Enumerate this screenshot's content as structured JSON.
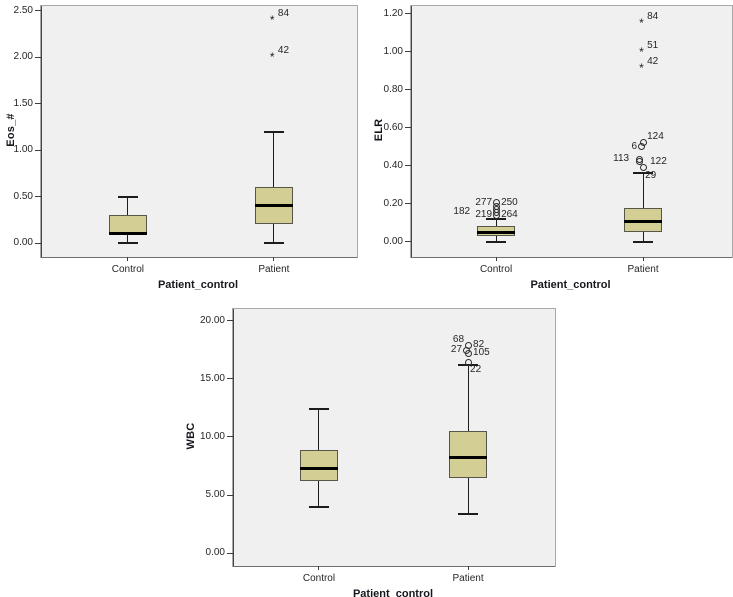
{
  "figure_type": "boxplot-grid",
  "colors": {
    "box_fill": "#d3cf94",
    "box_border": "#56564a",
    "median": "#000000",
    "whisker": "#1c1c1c",
    "plot_background": "#f0f0f0",
    "panel_border": "#a9a9a9",
    "axis_line": "#454545",
    "text": "#262626",
    "title_text": "#17171f"
  },
  "chart_data": [
    {
      "id": "eos",
      "type": "boxplot",
      "ylabel": "Eos_#",
      "xlabel": "Patient_control",
      "categories": [
        "Control",
        "Patient"
      ],
      "ylim": [
        -0.15,
        2.55
      ],
      "yticks": [
        {
          "v": 0.0,
          "label": "0.00"
        },
        {
          "v": 0.5,
          "label": "0.50"
        },
        {
          "v": 1.0,
          "label": "1.00"
        },
        {
          "v": 1.5,
          "label": "1.50"
        },
        {
          "v": 2.0,
          "label": "2.00"
        },
        {
          "v": 2.5,
          "label": "2.50"
        }
      ],
      "boxes": [
        {
          "category": "Control",
          "whisker_low": 0.0,
          "q1": 0.1,
          "median": 0.1,
          "q3": 0.3,
          "whisker_high": 0.5,
          "outliers": []
        },
        {
          "category": "Patient",
          "whisker_low": 0.0,
          "q1": 0.2,
          "median": 0.4,
          "q3": 0.6,
          "whisker_high": 1.2,
          "outliers": [
            {
              "v": 2.4,
              "marker": "star",
              "labels": [
                {
                  "text": "84",
                  "side": "above-right"
                }
              ]
            },
            {
              "v": 2.0,
              "marker": "star",
              "labels": [
                {
                  "text": "42",
                  "side": "above-right"
                }
              ]
            }
          ]
        }
      ]
    },
    {
      "id": "elr",
      "type": "boxplot",
      "ylabel": "ELR",
      "xlabel": "Patient_control",
      "categories": [
        "Control",
        "Patient"
      ],
      "ylim": [
        -0.08,
        1.24
      ],
      "yticks": [
        {
          "v": 0.0,
          "label": "0.00"
        },
        {
          "v": 0.2,
          "label": "0.20"
        },
        {
          "v": 0.4,
          "label": "0.40"
        },
        {
          "v": 0.6,
          "label": "0.60"
        },
        {
          "v": 0.8,
          "label": "0.80"
        },
        {
          "v": 1.0,
          "label": "1.00"
        },
        {
          "v": 1.2,
          "label": "1.20"
        }
      ],
      "boxes": [
        {
          "category": "Control",
          "whisker_low": 0.0,
          "q1": 0.03,
          "median": 0.05,
          "q3": 0.085,
          "whisker_high": 0.12,
          "outliers": [
            {
              "v": 0.205,
              "marker": "circle",
              "labels": [
                {
                  "text": "277",
                  "side": "left"
                },
                {
                  "text": "250",
                  "side": "right"
                }
              ]
            },
            {
              "v": 0.185,
              "marker": "circle",
              "labels": []
            },
            {
              "v": 0.17,
              "marker": "circle",
              "labels": []
            },
            {
              "v": 0.155,
              "marker": "circle",
              "labels": [
                {
                  "text": "182",
                  "side": "left",
                  "dx": -22
                }
              ]
            },
            {
              "v": 0.14,
              "marker": "circle",
              "labels": [
                {
                  "text": "219",
                  "side": "left"
                },
                {
                  "text": "264",
                  "side": "right"
                }
              ]
            }
          ]
        },
        {
          "category": "Patient",
          "whisker_low": 0.0,
          "q1": 0.05,
          "median": 0.105,
          "q3": 0.18,
          "whisker_high": 0.36,
          "outliers": [
            {
              "v": 1.15,
              "marker": "star",
              "labels": [
                {
                  "text": "84",
                  "side": "above-right"
                }
              ]
            },
            {
              "v": 1.0,
              "marker": "star",
              "labels": [
                {
                  "text": "51",
                  "side": "above-right"
                }
              ]
            },
            {
              "v": 0.915,
              "marker": "star",
              "labels": [
                {
                  "text": "42",
                  "side": "above-right"
                }
              ]
            },
            {
              "v": 0.52,
              "marker": "circle",
              "labels": [
                {
                  "text": "124",
                  "side": "above-right"
                }
              ]
            },
            {
              "v": 0.5,
              "marker": "circle",
              "dx": -2,
              "labels": [
                {
                  "text": "6",
                  "side": "left"
                }
              ]
            },
            {
              "v": 0.435,
              "marker": "circle",
              "dx": -4,
              "labels": [
                {
                  "text": "113",
                  "side": "left",
                  "dx": -6
                }
              ]
            },
            {
              "v": 0.42,
              "marker": "circle",
              "dx": -4,
              "labels": [
                {
                  "text": "122",
                  "side": "right",
                  "dx": 6
                }
              ]
            },
            {
              "v": 0.39,
              "marker": "circle",
              "labels": [
                {
                  "text": "29",
                  "side": "below-right"
                }
              ]
            }
          ]
        }
      ]
    },
    {
      "id": "wbc",
      "type": "boxplot",
      "ylabel": "WBC",
      "xlabel": "Patient_control",
      "categories": [
        "Control",
        "Patient"
      ],
      "ylim": [
        -1.1,
        21.0
      ],
      "yticks": [
        {
          "v": 0,
          "label": "0.00"
        },
        {
          "v": 5,
          "label": "5.00"
        },
        {
          "v": 10,
          "label": "10.00"
        },
        {
          "v": 15,
          "label": "15.00"
        },
        {
          "v": 20,
          "label": "20.00"
        }
      ],
      "boxes": [
        {
          "category": "Control",
          "whisker_low": 4.0,
          "q1": 6.2,
          "median": 7.3,
          "q3": 8.9,
          "whisker_high": 12.4,
          "outliers": []
        },
        {
          "category": "Patient",
          "whisker_low": 3.4,
          "q1": 6.5,
          "median": 8.2,
          "q3": 10.5,
          "whisker_high": 16.2,
          "outliers": [
            {
              "v": 17.9,
              "marker": "circle",
              "labels": [
                {
                  "text": "68",
                  "side": "above-left"
                },
                {
                  "text": "82",
                  "side": "right"
                }
              ]
            },
            {
              "v": 17.45,
              "marker": "circle",
              "dx": -2,
              "labels": [
                {
                  "text": "27",
                  "side": "left"
                }
              ]
            },
            {
              "v": 17.2,
              "marker": "circle",
              "labels": [
                {
                  "text": "105",
                  "side": "right"
                }
              ]
            },
            {
              "v": 16.4,
              "marker": "circle",
              "labels": [
                {
                  "text": "22",
                  "side": "below-right"
                }
              ]
            }
          ]
        }
      ]
    }
  ]
}
